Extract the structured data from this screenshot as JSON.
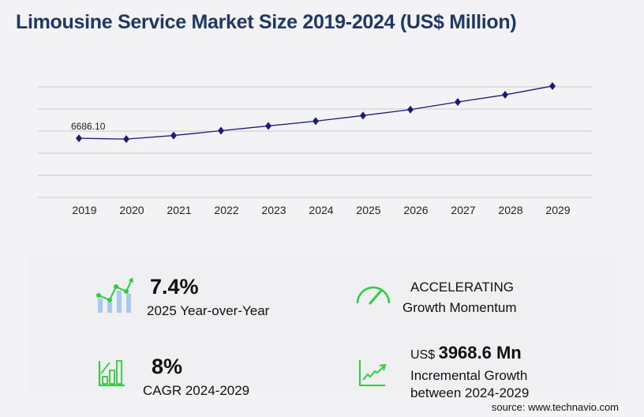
{
  "title": "Limousine Service Market Size 2019-2024 (US$ Million)",
  "chart_data": {
    "type": "line",
    "title": "Limousine Service Market Size 2019-2024 (US$ Million)",
    "categories": [
      "2019",
      "2020",
      "2021",
      "2022",
      "2023",
      "2024",
      "2025",
      "2026",
      "2027",
      "2028",
      "2029"
    ],
    "values": [
      6686.1,
      6596,
      7002,
      7543,
      8084,
      8625,
      9257,
      9933,
      10790,
      11602,
      12594
    ],
    "data_labels": [
      {
        "category": "2019",
        "text": "6686.10"
      }
    ],
    "ylim": [
      0,
      12500
    ],
    "grid": true,
    "line_color": "#1a1a7a",
    "marker": "diamond"
  },
  "stats": {
    "yoy_value": "7.4%",
    "yoy_label": "2025 Year-over-Year",
    "momentum_value": "ACCELERATING",
    "momentum_label": "Growth Momentum",
    "cagr_value": "8%",
    "cagr_label": "CAGR 2024-2029",
    "incr_prefix": "US$",
    "incr_value": "3968.6 Mn",
    "incr_label1": "Incremental Growth",
    "incr_label2": "between 2024-2029"
  },
  "source": "source: www.technavio.com",
  "colors": {
    "title": "#1f3864",
    "accent_green": "#2ecc40",
    "bar_blue": "#a8c8f0"
  }
}
